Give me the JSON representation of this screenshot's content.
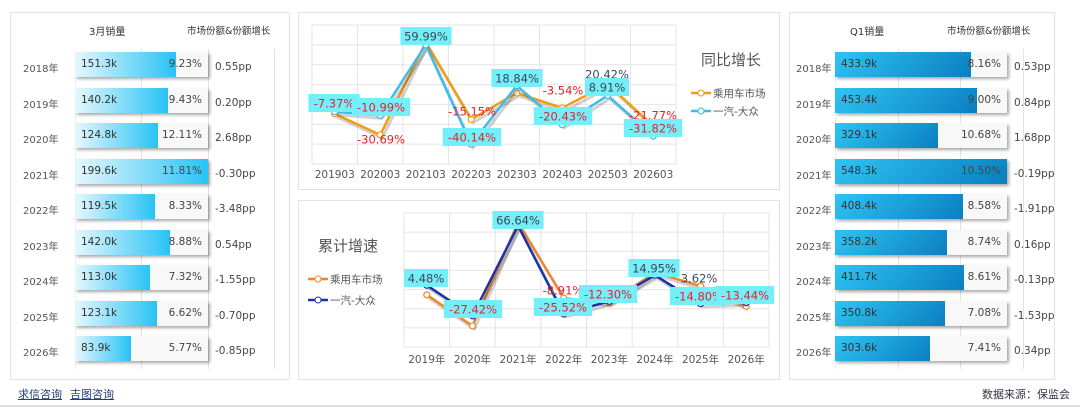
{
  "left_table": {
    "header_sales": "3月销量",
    "header_share": "市场份额&份额增长",
    "rows": [
      {
        "year": "2018年",
        "sales": "151.3k",
        "share": "9.23%",
        "growth": "0.55pp",
        "value": 151.3
      },
      {
        "year": "2019年",
        "sales": "140.2k",
        "share": "9.43%",
        "growth": "0.20pp",
        "value": 140.2
      },
      {
        "year": "2020年",
        "sales": "124.8k",
        "share": "12.11%",
        "growth": "2.68pp",
        "value": 124.8
      },
      {
        "year": "2021年",
        "sales": "199.6k",
        "share": "11.81%",
        "growth": "-0.30pp",
        "value": 199.6
      },
      {
        "year": "2022年",
        "sales": "119.5k",
        "share": "8.33%",
        "growth": "-3.48pp",
        "value": 119.5
      },
      {
        "year": "2023年",
        "sales": "142.0k",
        "share": "8.88%",
        "growth": "0.54pp",
        "value": 142.0
      },
      {
        "year": "2024年",
        "sales": "113.0k",
        "share": "7.32%",
        "growth": "-1.55pp",
        "value": 113.0
      },
      {
        "year": "2025年",
        "sales": "123.1k",
        "share": "6.62%",
        "growth": "-0.70pp",
        "value": 123.1
      },
      {
        "year": "2026年",
        "sales": "83.9k",
        "share": "5.77%",
        "growth": "-0.85pp",
        "value": 83.9
      }
    ]
  },
  "right_table": {
    "header_sales": "Q1销量",
    "header_share": "市场份额&份额增长",
    "rows": [
      {
        "year": "2018年",
        "sales": "433.9k",
        "share": "8.16%",
        "growth": "0.53pp",
        "value": 433.9
      },
      {
        "year": "2019年",
        "sales": "453.4k",
        "share": "9.00%",
        "growth": "0.84pp",
        "value": 453.4
      },
      {
        "year": "2020年",
        "sales": "329.1k",
        "share": "10.68%",
        "growth": "1.68pp",
        "value": 329.1
      },
      {
        "year": "2021年",
        "sales": "548.3k",
        "share": "10.50%",
        "growth": "-0.19pp",
        "value": 548.3
      },
      {
        "year": "2022年",
        "sales": "408.4k",
        "share": "8.58%",
        "growth": "-1.91pp",
        "value": 408.4
      },
      {
        "year": "2023年",
        "sales": "358.2k",
        "share": "8.74%",
        "growth": "0.16pp",
        "value": 358.2
      },
      {
        "year": "2024年",
        "sales": "411.7k",
        "share": "8.61%",
        "growth": "-0.13pp",
        "value": 411.7
      },
      {
        "year": "2025年",
        "sales": "350.8k",
        "share": "7.08%",
        "growth": "-1.53pp",
        "value": 350.8
      },
      {
        "year": "2026年",
        "sales": "303.6k",
        "share": "7.41%",
        "growth": "0.34pp",
        "value": 303.6
      }
    ]
  },
  "chart_data": [
    {
      "type": "line",
      "title": "同比增长",
      "ylim": [
        -60,
        80
      ],
      "grid": true,
      "legend": "right",
      "categories": [
        "201903",
        "202003",
        "202103",
        "202203",
        "202303",
        "202403",
        "202503",
        "202603"
      ],
      "series": [
        {
          "name": "乘用车市场",
          "color": "#f39c12",
          "values": [
            -9.5,
            -30.69,
            62.5,
            -15.15,
            11.5,
            -3.54,
            20.42,
            -21.77
          ],
          "labels": [
            "",
            "-30.69%",
            "",
            "-15.15%",
            "",
            "-3.54%",
            "20.42%",
            "-21.77%"
          ]
        },
        {
          "name": "一汽-大众",
          "color": "#3cbcec",
          "values": [
            -7.37,
            -10.99,
            59.99,
            -40.14,
            18.84,
            -20.43,
            8.91,
            -31.82
          ],
          "labels": [
            "-7.37%",
            "-10.99%",
            "59.99%",
            "-40.14%",
            "18.84%",
            "-20.43%",
            "8.91%",
            "-31.82%"
          ]
        }
      ]
    },
    {
      "type": "line",
      "title": "累计增速",
      "ylim": [
        -60,
        80
      ],
      "grid": true,
      "legend": "left",
      "categories": [
        "2019年",
        "2020年",
        "2021年",
        "2022年",
        "2023年",
        "2024年",
        "2025年",
        "2026年"
      ],
      "series": [
        {
          "name": "乘用车市场",
          "color": "#f0862e",
          "values": [
            -5.51,
            -38,
            70,
            -8.91,
            -14,
            17.9,
            3.62,
            -17.5
          ],
          "labels": [
            "",
            "",
            "",
            "-8.91%",
            "",
            "",
            "3.62%",
            ""
          ]
        },
        {
          "name": "一汽-大众",
          "color": "#1c33a8",
          "values": [
            4.48,
            -27.42,
            66.64,
            -25.52,
            -12.3,
            14.95,
            -14.8,
            -13.44
          ],
          "labels": [
            "4.48%",
            "-27.42%",
            "66.64%",
            "-25.52%",
            "-12.30%",
            "14.95%",
            "-14.80%",
            "-13.44%"
          ]
        }
      ]
    }
  ],
  "colors": {
    "label_box": "#74eef8",
    "negative_text": "#e8202a"
  },
  "footer": {
    "link1": "求信咨询",
    "link2": "吉图咨询",
    "source": "数据来源：保监会"
  }
}
